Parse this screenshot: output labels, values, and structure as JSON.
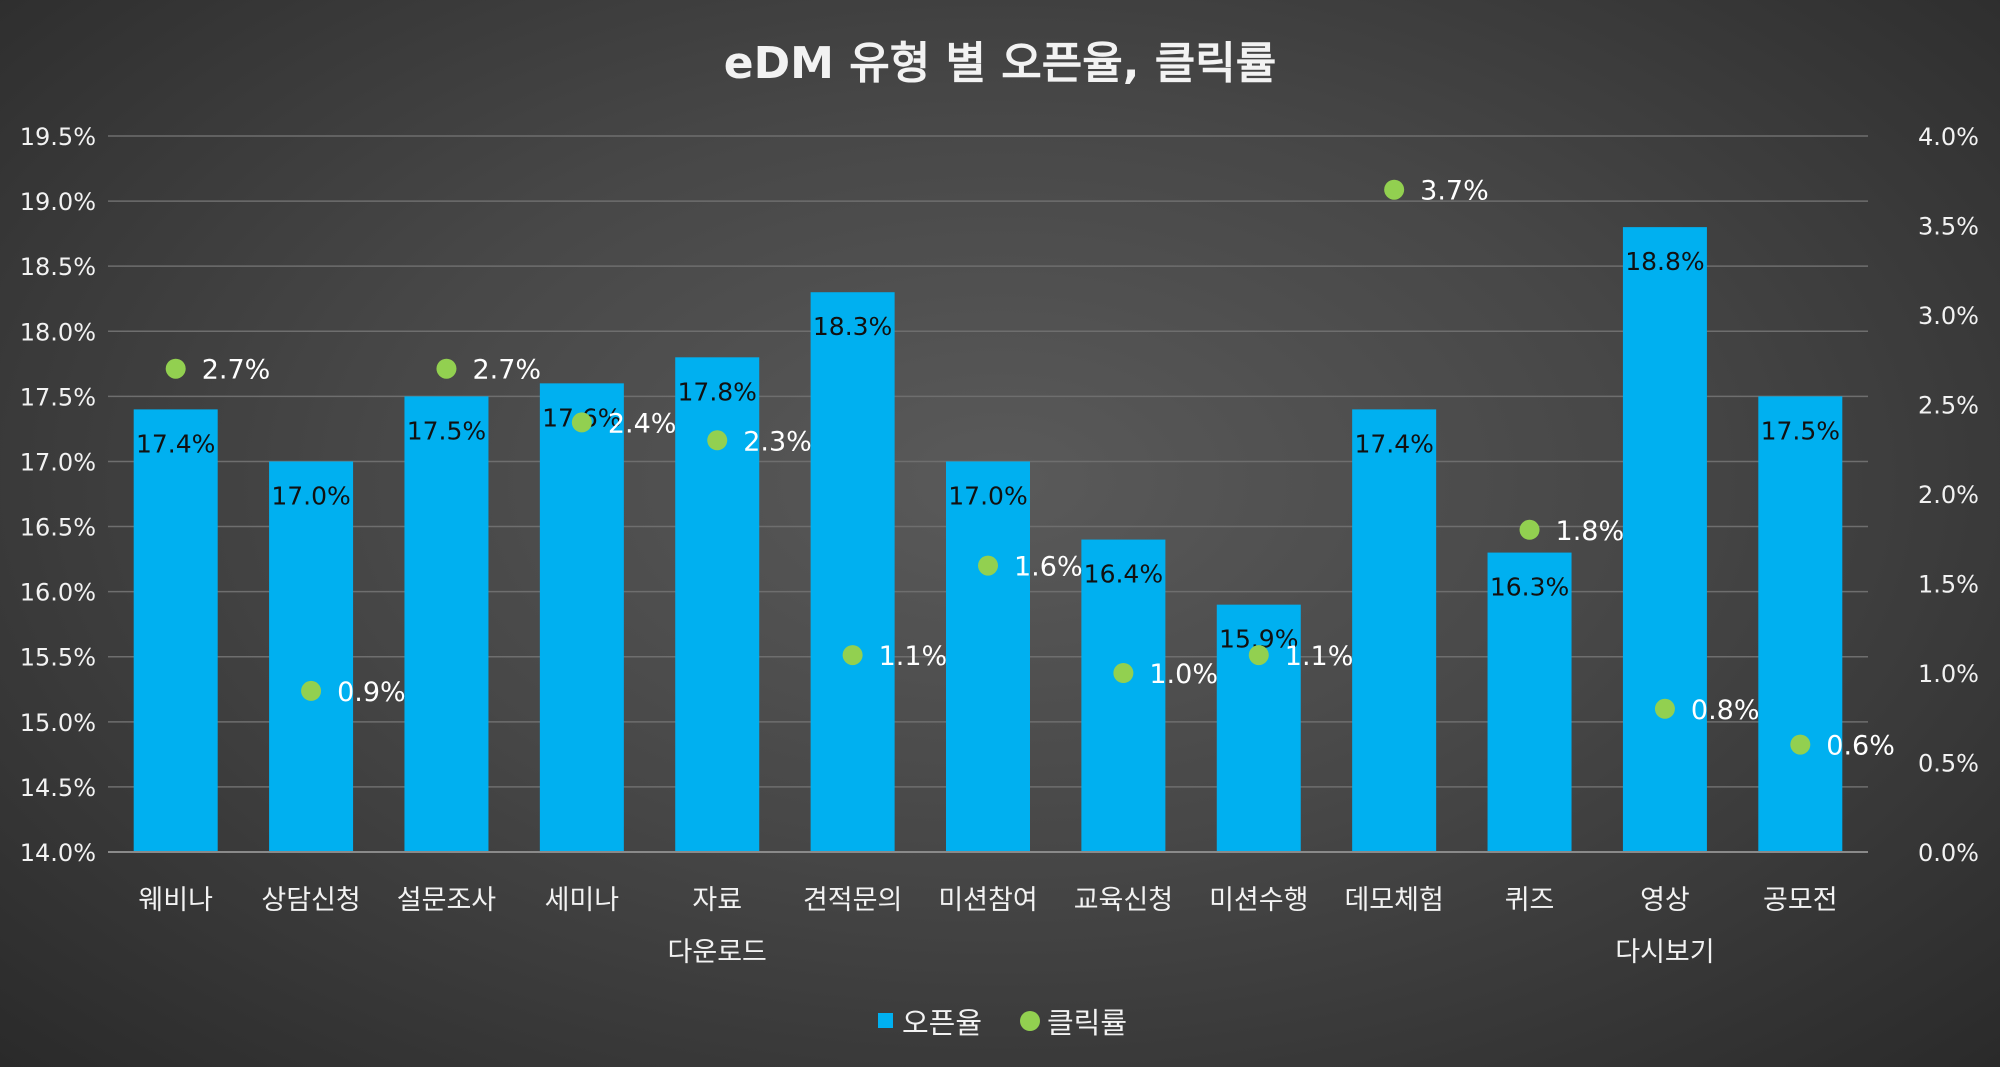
{
  "colors": {
    "bar": "#00b0f0",
    "dot": "#92d050",
    "text": "#f2f2f2"
  },
  "chart_data": {
    "type": "bar",
    "title": "eDM 유형 별 오픈율, 클릭률",
    "categories": [
      [
        "웨비나"
      ],
      [
        "상담신청"
      ],
      [
        "설문조사"
      ],
      [
        "세미나"
      ],
      [
        "자료",
        "다운로드"
      ],
      [
        "견적문의"
      ],
      [
        "미션참여"
      ],
      [
        "교육신청"
      ],
      [
        "미션수행"
      ],
      [
        "데모체험"
      ],
      [
        "퀴즈"
      ],
      [
        "영상",
        "다시보기"
      ],
      [
        "공모전"
      ]
    ],
    "series": [
      {
        "name": "오픈율",
        "type": "bar",
        "axis": "left",
        "values": [
          17.4,
          17.0,
          17.5,
          17.6,
          17.8,
          18.3,
          17.0,
          16.4,
          15.9,
          17.4,
          16.3,
          18.8,
          17.5
        ],
        "labels": [
          "17.4%",
          "17.0%",
          "17.5%",
          "17.6%",
          "17.8%",
          "18.3%",
          "17.0%",
          "16.4%",
          "15.9%",
          "17.4%",
          "16.3%",
          "18.8%",
          "17.5%"
        ]
      },
      {
        "name": "클릭률",
        "type": "scatter",
        "axis": "right",
        "values": [
          2.7,
          0.9,
          2.7,
          2.4,
          2.3,
          1.1,
          1.6,
          1.0,
          1.1,
          3.7,
          1.8,
          0.8,
          0.6
        ],
        "labels": [
          "2.7%",
          "0.9%",
          "2.7%",
          "2.4%",
          "2.3%",
          "1.1%",
          "1.6%",
          "1.0%",
          "1.1%",
          "3.7%",
          "1.8%",
          "0.8%",
          "0.6%"
        ]
      }
    ],
    "y_left": {
      "ylim": [
        14.0,
        19.5
      ],
      "ticks": [
        "14.0%",
        "14.5%",
        "15.0%",
        "15.5%",
        "16.0%",
        "16.5%",
        "17.0%",
        "17.5%",
        "18.0%",
        "18.5%",
        "19.0%",
        "19.5%"
      ]
    },
    "y_right": {
      "ylim": [
        0.0,
        4.0
      ],
      "ticks": [
        "0.0%",
        "0.5%",
        "1.0%",
        "1.5%",
        "2.0%",
        "2.5%",
        "3.0%",
        "3.5%",
        "4.0%"
      ]
    },
    "grid": true,
    "legend_position": "bottom"
  }
}
